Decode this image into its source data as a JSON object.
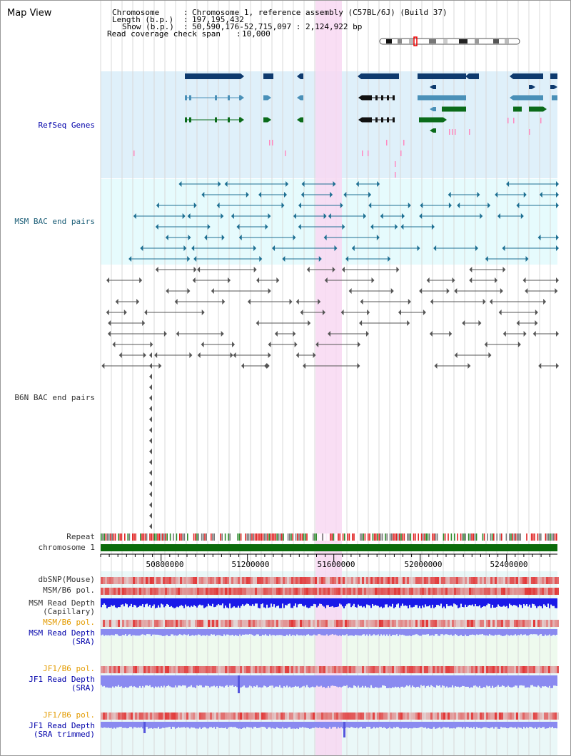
{
  "page": {
    "title": "Map View"
  },
  "info": {
    "chromosome_label": "Chromosome",
    "chromosome_value": "Chromosome 1, reference assembly (C57BL/6J) (Build 37)",
    "length_label": "Length (b.p.)",
    "length_value": "197,195,432",
    "show_label": "Show (b.p.)",
    "show_value": "50,590,176-52,715,097 : 2,124,922 bp",
    "coverage_label": "Read coverage check span",
    "coverage_value": "10,000"
  },
  "tracks": {
    "refseq": "RefSeq Genes",
    "msm_bac": "MSM BAC end pairs",
    "b6n_bac": "B6N BAC end pairs",
    "repeat": "Repeat",
    "chromosome": "chromosome 1",
    "dbsnp": "dbSNP(Mouse)",
    "msm_pol_1": "MSM/B6 pol.",
    "msm_depth_cap_1": "MSM Read Depth",
    "msm_depth_cap_2": "(Capillary)",
    "msm_pol_2": "MSM/B6 pol.",
    "msm_depth_sra_1": "MSM Read Depth",
    "msm_depth_sra_2": "(SRA)",
    "jf1_pol_1": "JF1/B6 pol.",
    "jf1_depth_sra_1": "JF1 Read Depth",
    "jf1_depth_sra_2": "(SRA)",
    "jf1_pol_2": "JF1/B6 pol.",
    "jf1_depth_trim_1": "JF1 Read Depth",
    "jf1_depth_trim_2": "(SRA trimmed)"
  },
  "axis": {
    "ticks": [
      "50800000",
      "51200000",
      "51600000",
      "52000000",
      "52400000"
    ]
  },
  "colors": {
    "refseq_bg": "#dff0fa",
    "msm_bac_bg": "#e6fbfd",
    "depth_bg": "#eefaee",
    "highlight": "#f8d8f2",
    "gene_dark": "#0e3a6e",
    "gene_mid": "#4a90b8",
    "gene_green": "#0b6b1a",
    "msm_bac": "#1d6f92",
    "b6n_bac": "#555555",
    "chromosome": "#0b6b0b",
    "depth_blue": "#1a1ae8",
    "depth_light": "#8a8af0",
    "pol_red": "#e23a3a"
  }
}
